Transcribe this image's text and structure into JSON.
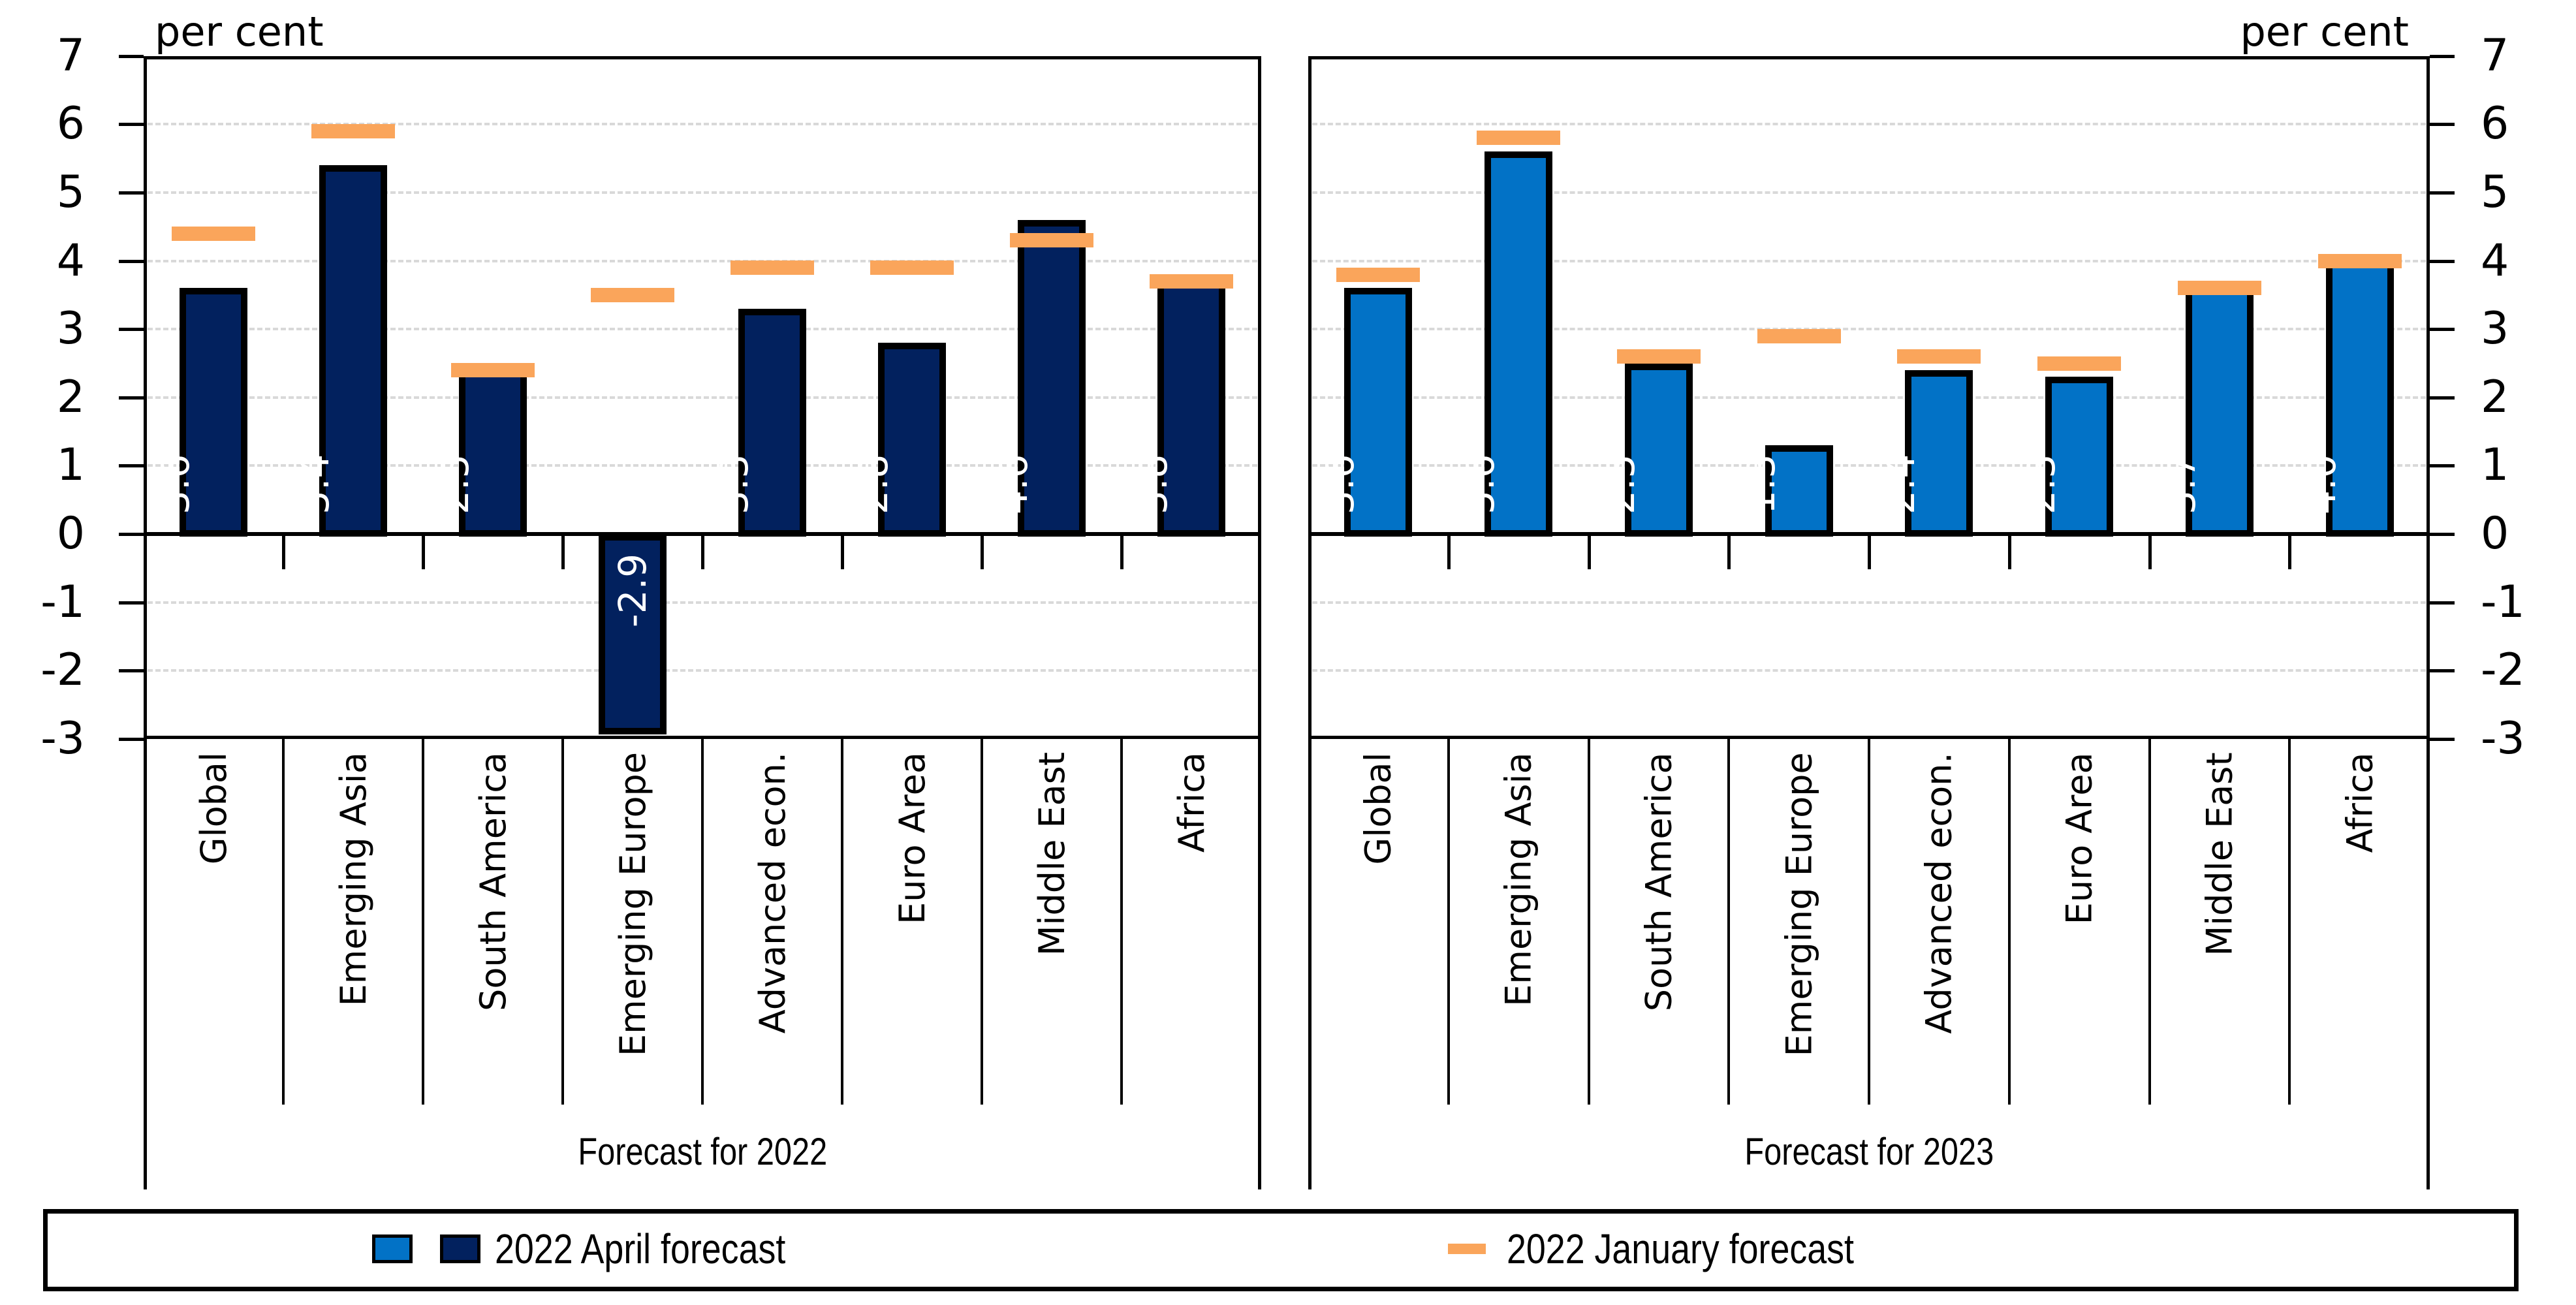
{
  "chart_data": {
    "type": "bar",
    "title": "",
    "unit_label": "per cent",
    "ylabel": "per cent",
    "ylim": [
      -3,
      7
    ],
    "yticks": [
      "7",
      "6",
      "5",
      "4",
      "3",
      "2",
      "1",
      "0",
      "-1",
      "-2",
      "-3"
    ],
    "gridline_values": [
      6,
      5,
      4,
      3,
      2,
      1,
      -1,
      -2
    ],
    "grid": "horizontal dashed light gray, solid black zero line",
    "legend_position": "bottom box",
    "categories": [
      "Global",
      "Emerging Asia",
      "South America",
      "Emerging Europe",
      "Advanced econ.",
      "Euro Area",
      "Middle East",
      "Africa"
    ],
    "panels": [
      {
        "title": "Forecast for 2022",
        "bar_color": "#02215E",
        "series": [
          {
            "name": "2022 April forecast",
            "type": "bar",
            "values": [
              3.6,
              5.4,
              2.5,
              -2.9,
              3.3,
              2.8,
              4.6,
              3.8
            ]
          },
          {
            "name": "2022 January forecast",
            "type": "dash-marker",
            "values": [
              4.4,
              5.9,
              2.4,
              3.5,
              3.9,
              3.9,
              4.3,
              3.7
            ]
          }
        ]
      },
      {
        "title": "Forecast for 2023",
        "bar_color": "#0272C6",
        "series": [
          {
            "name": "2022 April forecast",
            "type": "bar",
            "values": [
              3.6,
              5.6,
              2.5,
              1.3,
              2.4,
              2.3,
              3.7,
              4.0
            ]
          },
          {
            "name": "2022 January forecast",
            "type": "dash-marker",
            "values": [
              3.8,
              5.8,
              2.6,
              2.9,
              2.6,
              2.5,
              3.6,
              4.0
            ]
          }
        ]
      }
    ],
    "legend": [
      {
        "label": "2022 April forecast",
        "swatches": [
          "#0272C6",
          "#02215E"
        ]
      },
      {
        "label": "2022 January forecast",
        "swatch": "#FAA55B"
      }
    ],
    "colors": {
      "navy": "#02215E",
      "blue": "#0272C6",
      "orange": "#FAA55B",
      "gridline": "#D9D9D9",
      "axis": "#000000",
      "value_label_text": "#FFFFFF"
    }
  }
}
